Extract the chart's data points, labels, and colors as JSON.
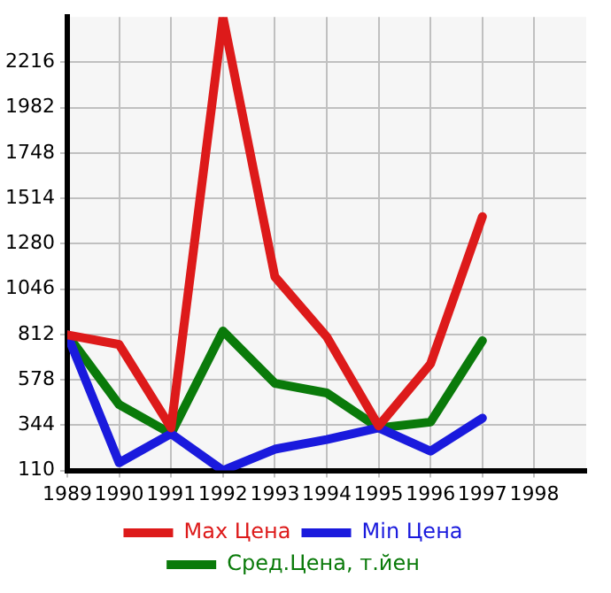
{
  "chart_data": {
    "type": "line",
    "x": [
      1989,
      1990,
      1991,
      1992,
      1993,
      1994,
      1995,
      1996,
      1997
    ],
    "series": [
      {
        "name": "Max Цена",
        "color": "#dd1a1a",
        "values": [
          810,
          760,
          330,
          2450,
          1110,
          800,
          340,
          660,
          1420
        ]
      },
      {
        "name": "Min Цена",
        "color": "#1a1add",
        "values": [
          810,
          150,
          300,
          110,
          220,
          270,
          330,
          210,
          380
        ]
      },
      {
        "name": "Сред.Цена, т.йен",
        "color": "#0a7a0a",
        "values": [
          810,
          450,
          300,
          830,
          560,
          510,
          330,
          360,
          780
        ]
      }
    ],
    "xlim": [
      1989,
      1999
    ],
    "xticks": [
      1989,
      1990,
      1991,
      1992,
      1993,
      1994,
      1995,
      1996,
      1997,
      1998
    ],
    "ylim": [
      110,
      2450
    ],
    "yticks": [
      110,
      344,
      578,
      812,
      1046,
      1280,
      1514,
      1748,
      1982,
      2216
    ],
    "grid": true,
    "legend": "bottom",
    "marker": "none",
    "line_style": "solid"
  }
}
